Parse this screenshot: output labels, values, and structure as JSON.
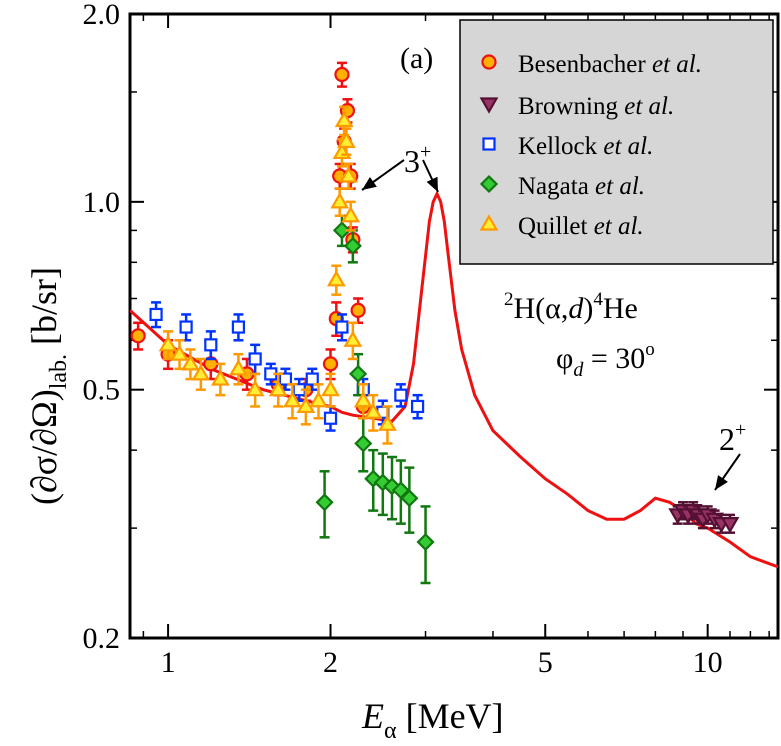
{
  "chart_data": {
    "type": "scatter",
    "panel_label": "(a)",
    "xlabel_main": "E",
    "xlabel_sub": "α",
    "xlabel_unit": "[MeV]",
    "ylabel_main": "(∂σ/∂Ω)",
    "ylabel_sub": "lab.",
    "ylabel_unit": "[b/sr]",
    "x_scale": "log",
    "y_scale": "log",
    "xlim": [
      0.85,
      13.5
    ],
    "ylim": [
      0.2,
      2.0
    ],
    "x_ticks": [
      1,
      2,
      5,
      10
    ],
    "x_tick_labels": [
      "1",
      "2",
      "5",
      "10"
    ],
    "y_ticks": [
      0.2,
      0.5,
      1.0,
      2.0
    ],
    "y_tick_labels": [
      "0.2",
      "0.5",
      "1.0",
      "2.0"
    ],
    "reaction": {
      "pre": "2",
      "a": "H(",
      "alpha": "α",
      "comma": ",",
      "d": "d",
      "close": ")",
      "post": "4",
      "he": "He"
    },
    "angle": {
      "phi": "φ",
      "sub": "d",
      "eq": " = 30",
      "deg": "o"
    },
    "annotations": [
      {
        "text": "3",
        "sup": "+",
        "targets": [
          [
            2.15,
            1.0
          ],
          [
            3.2,
            1.03
          ]
        ]
      },
      {
        "text": "2",
        "sup": "+",
        "targets": [
          [
            9.3,
            0.335
          ]
        ]
      }
    ],
    "legend": [
      {
        "name": "Besenbacher",
        "italic": "et al.",
        "marker": "circle"
      },
      {
        "name": "Browning",
        "italic": "et al.",
        "marker": "triangle-down"
      },
      {
        "name": "Kellock",
        "italic": "et al.",
        "marker": "square"
      },
      {
        "name": "Nagata",
        "italic": "et al.",
        "marker": "diamond"
      },
      {
        "name": "Quillet",
        "italic": "et al.",
        "marker": "triangle-up"
      }
    ],
    "series": [
      {
        "name": "Besenbacher et al.",
        "marker": "circle",
        "color": "#ee1111",
        "fill": "#ffb000",
        "points": [
          [
            0.88,
            0.61,
            0.03
          ],
          [
            1.0,
            0.57,
            0.03
          ],
          [
            1.2,
            0.55,
            0.03
          ],
          [
            1.4,
            0.53,
            0.03
          ],
          [
            1.6,
            0.51,
            0.02
          ],
          [
            1.8,
            0.5,
            0.02
          ],
          [
            2.0,
            0.55,
            0.03
          ],
          [
            2.05,
            0.65,
            0.04
          ],
          [
            2.08,
            1.1,
            0.05
          ],
          [
            2.1,
            1.6,
            0.07
          ],
          [
            2.12,
            1.25,
            0.06
          ],
          [
            2.15,
            1.4,
            0.06
          ],
          [
            2.18,
            1.1,
            0.05
          ],
          [
            2.2,
            0.87,
            0.04
          ],
          [
            2.25,
            0.67,
            0.03
          ],
          [
            2.3,
            0.47,
            0.02
          ]
        ]
      },
      {
        "name": "Kellock et al.",
        "marker": "square",
        "color": "#0033ff",
        "fill": "#ffffff",
        "points": [
          [
            0.95,
            0.66,
            0.03
          ],
          [
            1.08,
            0.63,
            0.03
          ],
          [
            1.2,
            0.59,
            0.03
          ],
          [
            1.35,
            0.63,
            0.03
          ],
          [
            1.45,
            0.56,
            0.03
          ],
          [
            1.55,
            0.53,
            0.02
          ],
          [
            1.65,
            0.52,
            0.02
          ],
          [
            1.75,
            0.5,
            0.02
          ],
          [
            1.85,
            0.52,
            0.02
          ],
          [
            2.0,
            0.45,
            0.02
          ],
          [
            2.1,
            0.63,
            0.03
          ],
          [
            2.3,
            0.5,
            0.02
          ],
          [
            2.5,
            0.46,
            0.02
          ],
          [
            2.7,
            0.49,
            0.02
          ],
          [
            2.9,
            0.47,
            0.02
          ]
        ]
      },
      {
        "name": "Nagata et al.",
        "marker": "diamond",
        "color": "#117711",
        "fill": "#33cc33",
        "points": [
          [
            1.95,
            0.33,
            0.04
          ],
          [
            2.1,
            0.9,
            0.05
          ],
          [
            2.2,
            0.85,
            0.05
          ],
          [
            2.25,
            0.53,
            0.04
          ],
          [
            2.3,
            0.41,
            0.04
          ],
          [
            2.4,
            0.36,
            0.04
          ],
          [
            2.5,
            0.355,
            0.04
          ],
          [
            2.6,
            0.35,
            0.04
          ],
          [
            2.7,
            0.345,
            0.04
          ],
          [
            2.8,
            0.335,
            0.04
          ],
          [
            3.0,
            0.285,
            0.04
          ]
        ]
      },
      {
        "name": "Quillet et al.",
        "marker": "triangle-up",
        "color": "#ff9900",
        "fill": "#ffee33",
        "points": [
          [
            1.0,
            0.59,
            0.03
          ],
          [
            1.05,
            0.57,
            0.03
          ],
          [
            1.1,
            0.55,
            0.03
          ],
          [
            1.15,
            0.53,
            0.03
          ],
          [
            1.25,
            0.52,
            0.03
          ],
          [
            1.35,
            0.54,
            0.03
          ],
          [
            1.45,
            0.5,
            0.03
          ],
          [
            1.6,
            0.5,
            0.03
          ],
          [
            1.7,
            0.48,
            0.03
          ],
          [
            1.8,
            0.47,
            0.03
          ],
          [
            1.9,
            0.48,
            0.03
          ],
          [
            2.0,
            0.5,
            0.03
          ],
          [
            2.05,
            0.75,
            0.04
          ],
          [
            2.08,
            1.0,
            0.05
          ],
          [
            2.1,
            1.2,
            0.06
          ],
          [
            2.12,
            1.35,
            0.07
          ],
          [
            2.14,
            1.25,
            0.06
          ],
          [
            2.16,
            1.1,
            0.05
          ],
          [
            2.18,
            0.95,
            0.05
          ],
          [
            2.2,
            0.6,
            0.04
          ],
          [
            2.3,
            0.48,
            0.03
          ],
          [
            2.4,
            0.46,
            0.03
          ],
          [
            2.55,
            0.44,
            0.03
          ]
        ]
      },
      {
        "name": "Browning et al.",
        "marker": "triangle-down",
        "color": "#551133",
        "fill": "#993366",
        "points": [
          [
            8.8,
            0.315,
            0.01
          ],
          [
            9.0,
            0.32,
            0.01
          ],
          [
            9.2,
            0.315,
            0.01
          ],
          [
            9.4,
            0.32,
            0.01
          ],
          [
            9.6,
            0.315,
            0.01
          ],
          [
            9.8,
            0.31,
            0.01
          ],
          [
            10.0,
            0.315,
            0.01
          ],
          [
            10.3,
            0.31,
            0.01
          ],
          [
            10.6,
            0.305,
            0.01
          ],
          [
            11.0,
            0.305,
            0.01
          ]
        ]
      }
    ],
    "theory_curve": {
      "color": "#ee1111",
      "x": [
        0.85,
        1.0,
        1.2,
        1.5,
        1.8,
        2.0,
        2.1,
        2.2,
        2.4,
        2.6,
        2.75,
        2.85,
        2.95,
        3.05,
        3.1,
        3.15,
        3.2,
        3.25,
        3.3,
        3.4,
        3.5,
        3.7,
        4.0,
        4.5,
        5.0,
        5.5,
        6.0,
        6.5,
        7.0,
        7.5,
        8.0,
        8.5,
        9.0,
        9.5,
        10.0,
        11.0,
        12.0,
        13.5
      ],
      "y": [
        0.67,
        0.59,
        0.54,
        0.5,
        0.48,
        0.47,
        0.46,
        0.455,
        0.45,
        0.445,
        0.47,
        0.55,
        0.72,
        0.93,
        1.0,
        1.03,
        1.0,
        0.93,
        0.83,
        0.67,
        0.58,
        0.49,
        0.43,
        0.39,
        0.36,
        0.34,
        0.32,
        0.31,
        0.31,
        0.32,
        0.335,
        0.33,
        0.32,
        0.305,
        0.3,
        0.285,
        0.27,
        0.26
      ]
    }
  }
}
